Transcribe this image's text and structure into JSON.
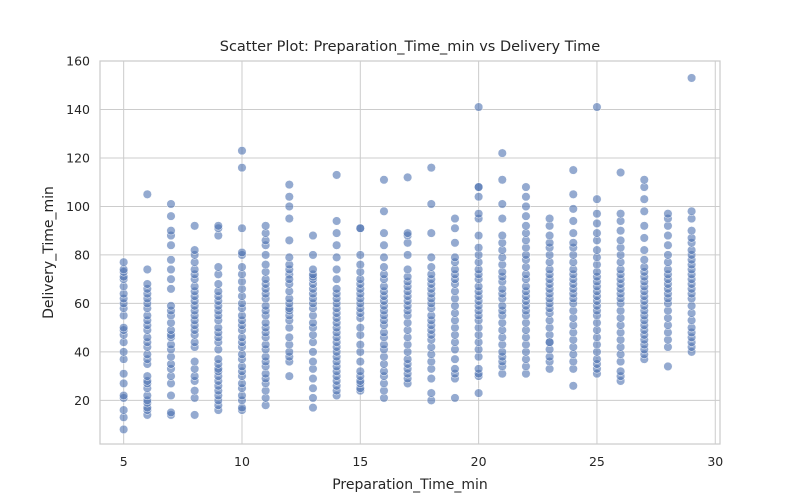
{
  "chart_data": {
    "type": "scatter",
    "title": "Scatter Plot: Preparation_Time_min vs Delivery Time",
    "xlabel": "Preparation_Time_min",
    "ylabel": "Delivery_Time_min",
    "xlim": [
      4,
      30.2
    ],
    "ylim": [
      2,
      160
    ],
    "xticks": [
      5,
      10,
      15,
      20,
      25,
      30
    ],
    "yticks": [
      20,
      40,
      60,
      80,
      100,
      120,
      140,
      160
    ],
    "grid": true,
    "legend": "none",
    "colors": {
      "points": "#4c72b0",
      "grid": "#cccccc"
    },
    "series": [
      {
        "x": [
          5,
          5,
          5,
          5,
          5,
          5,
          5,
          5,
          5,
          5,
          5,
          5,
          5,
          5,
          5,
          5,
          5,
          5,
          5,
          5,
          5,
          5,
          5,
          5,
          6,
          6,
          6,
          6,
          6,
          6,
          6,
          6,
          6,
          6,
          6,
          6,
          6,
          6,
          6,
          6,
          6,
          6,
          6,
          6,
          6,
          6,
          6,
          6,
          6,
          6,
          6,
          6,
          7,
          7,
          7,
          7,
          7,
          7,
          7,
          7,
          7,
          7,
          7,
          7,
          7,
          7,
          7,
          7,
          7,
          7,
          7,
          7,
          7,
          7,
          7,
          7,
          7,
          7,
          8,
          8,
          8,
          8,
          8,
          8,
          8,
          8,
          8,
          8,
          8,
          8,
          8,
          8,
          8,
          8,
          8,
          8,
          8,
          8,
          8,
          8,
          8,
          8,
          8,
          8,
          8,
          9,
          9,
          9,
          9,
          9,
          9,
          9,
          9,
          9,
          9,
          9,
          9,
          9,
          9,
          9,
          9,
          9,
          9,
          9,
          9,
          9,
          9,
          9,
          9,
          9,
          9,
          9,
          9,
          9,
          9,
          10,
          10,
          10,
          10,
          10,
          10,
          10,
          10,
          10,
          10,
          10,
          10,
          10,
          10,
          10,
          10,
          10,
          10,
          10,
          10,
          10,
          10,
          10,
          10,
          10,
          10,
          10,
          10,
          10,
          10,
          11,
          11,
          11,
          11,
          11,
          11,
          11,
          11,
          11,
          11,
          11,
          11,
          11,
          11,
          11,
          11,
          11,
          11,
          11,
          11,
          11,
          11,
          11,
          11,
          11,
          11,
          11,
          11,
          11,
          11,
          12,
          12,
          12,
          12,
          12,
          12,
          12,
          12,
          12,
          12,
          12,
          12,
          12,
          12,
          12,
          12,
          12,
          12,
          12,
          12,
          12,
          12,
          12,
          12,
          12,
          13,
          13,
          13,
          13,
          13,
          13,
          13,
          13,
          13,
          13,
          13,
          13,
          13,
          13,
          13,
          13,
          13,
          13,
          13,
          13,
          13,
          13,
          13,
          13,
          14,
          14,
          14,
          14,
          14,
          14,
          14,
          14,
          14,
          14,
          14,
          14,
          14,
          14,
          14,
          14,
          14,
          14,
          14,
          14,
          14,
          14,
          14,
          14,
          14,
          14,
          14,
          14,
          14,
          14,
          15,
          15,
          15,
          15,
          15,
          15,
          15,
          15,
          15,
          15,
          15,
          15,
          15,
          15,
          15,
          15,
          15,
          15,
          15,
          15,
          15,
          15,
          15,
          15,
          15,
          16,
          16,
          16,
          16,
          16,
          16,
          16,
          16,
          16,
          16,
          16,
          16,
          16,
          16,
          16,
          16,
          16,
          16,
          16,
          16,
          16,
          16,
          16,
          16,
          16,
          16,
          16,
          16,
          17,
          17,
          17,
          17,
          17,
          17,
          17,
          17,
          17,
          17,
          17,
          17,
          17,
          17,
          17,
          17,
          17,
          17,
          17,
          17,
          17,
          17,
          17,
          17,
          17,
          17,
          18,
          18,
          18,
          18,
          18,
          18,
          18,
          18,
          18,
          18,
          18,
          18,
          18,
          18,
          18,
          18,
          18,
          18,
          18,
          18,
          18,
          18,
          18,
          18,
          18,
          18,
          19,
          19,
          19,
          19,
          19,
          19,
          19,
          19,
          19,
          19,
          19,
          19,
          19,
          19,
          19,
          19,
          19,
          19,
          19,
          19,
          19,
          19,
          19,
          20,
          20,
          20,
          20,
          20,
          20,
          20,
          20,
          20,
          20,
          20,
          20,
          20,
          20,
          20,
          20,
          20,
          20,
          20,
          20,
          20,
          20,
          20,
          20,
          20,
          20,
          20,
          20,
          20,
          20,
          21,
          21,
          21,
          21,
          21,
          21,
          21,
          21,
          21,
          21,
          21,
          21,
          21,
          21,
          21,
          21,
          21,
          21,
          21,
          21,
          21,
          21,
          21,
          21,
          21,
          21,
          21,
          22,
          22,
          22,
          22,
          22,
          22,
          22,
          22,
          22,
          22,
          22,
          22,
          22,
          22,
          22,
          22,
          22,
          22,
          22,
          22,
          22,
          22,
          22,
          22,
          22,
          22,
          22,
          22,
          23,
          23,
          23,
          23,
          23,
          23,
          23,
          23,
          23,
          23,
          23,
          23,
          23,
          23,
          23,
          23,
          23,
          23,
          23,
          23,
          23,
          23,
          23,
          23,
          23,
          23,
          24,
          24,
          24,
          24,
          24,
          24,
          24,
          24,
          24,
          24,
          24,
          24,
          24,
          24,
          24,
          24,
          24,
          24,
          24,
          24,
          24,
          24,
          24,
          24,
          24,
          24,
          24,
          25,
          25,
          25,
          25,
          25,
          25,
          25,
          25,
          25,
          25,
          25,
          25,
          25,
          25,
          25,
          25,
          25,
          25,
          25,
          25,
          25,
          25,
          25,
          25,
          25,
          25,
          25,
          25,
          26,
          26,
          26,
          26,
          26,
          26,
          26,
          26,
          26,
          26,
          26,
          26,
          26,
          26,
          26,
          26,
          26,
          26,
          26,
          26,
          26,
          26,
          26,
          26,
          26,
          26,
          26,
          27,
          27,
          27,
          27,
          27,
          27,
          27,
          27,
          27,
          27,
          27,
          27,
          27,
          27,
          27,
          27,
          27,
          27,
          27,
          27,
          27,
          27,
          27,
          27,
          27,
          27,
          27,
          27,
          28,
          28,
          28,
          28,
          28,
          28,
          28,
          28,
          28,
          28,
          28,
          28,
          28,
          28,
          28,
          28,
          28,
          28,
          28,
          28,
          28,
          28,
          29,
          29,
          29,
          29,
          29,
          29,
          29,
          29,
          29,
          29,
          29,
          29,
          29,
          29,
          29,
          29,
          29,
          29,
          29,
          29,
          29,
          29,
          29,
          29,
          29,
          29
        ],
        "y": [
          8,
          13,
          16,
          21,
          22,
          27,
          31,
          37,
          40,
          44,
          47,
          49,
          50,
          55,
          58,
          60,
          62,
          64,
          67,
          70,
          71,
          73,
          74,
          77,
          14,
          16,
          17,
          19,
          20,
          22,
          25,
          27,
          28,
          30,
          35,
          37,
          39,
          42,
          44,
          46,
          49,
          51,
          53,
          55,
          58,
          60,
          62,
          64,
          66,
          68,
          74,
          105,
          14,
          15,
          22,
          27,
          30,
          33,
          35,
          38,
          41,
          43,
          46,
          47,
          49,
          52,
          55,
          57,
          59,
          66,
          70,
          74,
          78,
          84,
          88,
          90,
          96,
          101,
          14,
          21,
          24,
          28,
          30,
          33,
          36,
          42,
          44,
          47,
          49,
          51,
          53,
          55,
          57,
          59,
          61,
          63,
          65,
          67,
          70,
          72,
          74,
          77,
          80,
          82,
          92,
          16,
          18,
          20,
          22,
          24,
          26,
          28,
          30,
          32,
          33,
          35,
          37,
          41,
          44,
          46,
          48,
          50,
          53,
          55,
          57,
          59,
          61,
          63,
          65,
          68,
          72,
          75,
          88,
          91,
          92,
          16,
          17,
          20,
          22,
          25,
          27,
          30,
          32,
          34,
          37,
          39,
          42,
          44,
          46,
          49,
          51,
          53,
          55,
          58,
          60,
          63,
          66,
          69,
          72,
          75,
          80,
          81,
          91,
          116,
          123,
          18,
          21,
          24,
          27,
          29,
          31,
          34,
          36,
          38,
          41,
          43,
          46,
          48,
          50,
          52,
          55,
          57,
          59,
          62,
          64,
          66,
          68,
          70,
          73,
          76,
          80,
          84,
          86,
          89,
          92,
          30,
          36,
          38,
          40,
          43,
          46,
          50,
          53,
          55,
          57,
          58,
          60,
          62,
          65,
          68,
          72,
          74,
          76,
          79,
          86,
          95,
          100,
          104,
          109,
          70,
          17,
          21,
          25,
          29,
          33,
          36,
          40,
          44,
          47,
          50,
          52,
          55,
          58,
          60,
          62,
          64,
          66,
          68,
          70,
          71,
          72,
          74,
          80,
          88,
          22,
          24,
          26,
          28,
          30,
          32,
          34,
          36,
          38,
          40,
          42,
          44,
          46,
          48,
          50,
          52,
          54,
          56,
          58,
          60,
          62,
          64,
          66,
          70,
          74,
          79,
          84,
          89,
          94,
          113,
          24,
          25,
          27,
          28,
          30,
          32,
          36,
          40,
          43,
          47,
          50,
          54,
          56,
          58,
          60,
          62,
          64,
          66,
          68,
          70,
          73,
          76,
          80,
          91,
          91,
          21,
          24,
          27,
          30,
          32,
          35,
          38,
          41,
          43,
          46,
          48,
          51,
          53,
          55,
          57,
          59,
          61,
          63,
          65,
          67,
          70,
          72,
          75,
          79,
          84,
          89,
          98,
          111,
          27,
          29,
          31,
          33,
          35,
          37,
          40,
          43,
          46,
          49,
          52,
          55,
          57,
          59,
          61,
          63,
          65,
          67,
          69,
          71,
          74,
          80,
          85,
          88,
          89,
          112,
          20,
          23,
          29,
          33,
          36,
          39,
          42,
          45,
          47,
          49,
          51,
          53,
          55,
          58,
          60,
          62,
          64,
          66,
          68,
          70,
          72,
          75,
          79,
          89,
          101,
          116,
          21,
          29,
          31,
          33,
          37,
          41,
          44,
          47,
          50,
          53,
          56,
          59,
          62,
          65,
          68,
          70,
          72,
          74,
          77,
          79,
          85,
          91,
          95,
          23,
          30,
          31,
          33,
          38,
          41,
          44,
          47,
          50,
          53,
          55,
          57,
          59,
          61,
          63,
          65,
          67,
          70,
          72,
          74,
          77,
          80,
          83,
          88,
          95,
          97,
          104,
          108,
          108,
          141,
          31,
          34,
          36,
          38,
          40,
          43,
          46,
          49,
          52,
          55,
          57,
          59,
          62,
          64,
          66,
          69,
          71,
          73,
          76,
          79,
          82,
          85,
          88,
          95,
          101,
          111,
          122,
          31,
          34,
          37,
          40,
          43,
          46,
          49,
          52,
          55,
          57,
          59,
          61,
          63,
          65,
          67,
          70,
          72,
          75,
          78,
          80,
          83,
          86,
          89,
          92,
          96,
          100,
          104,
          108,
          33,
          36,
          38,
          41,
          44,
          47,
          50,
          53,
          56,
          58,
          60,
          62,
          64,
          66,
          68,
          70,
          72,
          74,
          77,
          80,
          83,
          85,
          88,
          92,
          95,
          44,
          26,
          33,
          36,
          39,
          42,
          45,
          48,
          51,
          54,
          57,
          60,
          62,
          64,
          66,
          68,
          70,
          72,
          74,
          77,
          80,
          83,
          85,
          89,
          94,
          99,
          105,
          115,
          31,
          33,
          35,
          37,
          40,
          43,
          46,
          49,
          52,
          55,
          57,
          59,
          61,
          63,
          65,
          67,
          69,
          71,
          73,
          76,
          79,
          82,
          86,
          89,
          93,
          97,
          103,
          141,
          28,
          30,
          32,
          36,
          39,
          42,
          45,
          48,
          51,
          54,
          57,
          60,
          62,
          64,
          66,
          68,
          70,
          72,
          74,
          77,
          80,
          83,
          86,
          90,
          94,
          97,
          114,
          37,
          39,
          41,
          43,
          45,
          47,
          49,
          51,
          53,
          55,
          57,
          59,
          61,
          63,
          65,
          67,
          69,
          71,
          73,
          75,
          78,
          82,
          87,
          92,
          98,
          103,
          108,
          111,
          34,
          42,
          45,
          48,
          51,
          54,
          57,
          60,
          62,
          64,
          66,
          68,
          70,
          72,
          74,
          77,
          80,
          84,
          88,
          92,
          95,
          97,
          40,
          42,
          44,
          46,
          48,
          50,
          53,
          56,
          59,
          62,
          64,
          66,
          68,
          70,
          72,
          74,
          76,
          78,
          80,
          82,
          85,
          87,
          90,
          95,
          98,
          153
        ]
      }
    ]
  }
}
